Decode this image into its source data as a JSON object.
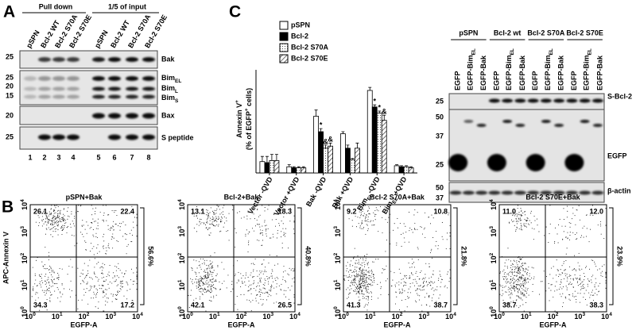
{
  "panel_a": {
    "label": "A",
    "headers": [
      "Pull down",
      "1/5 of input"
    ],
    "lanes": [
      "pSPN",
      "Bcl-2 WT",
      "Bcl-2 S70A",
      "Bcl-2 S70E",
      "pSPN",
      "Bcl-2 WT",
      "Bcl-2 S70A",
      "Bcl-2 S70E"
    ],
    "lane_numbers": [
      1,
      2,
      3,
      4,
      5,
      6,
      7,
      8
    ],
    "markers": [
      25,
      25,
      20,
      15,
      20,
      25
    ],
    "bands": [
      "Bak",
      [
        "Bim",
        "EL"
      ],
      [
        "Bim",
        "L"
      ],
      [
        "Bim",
        "S"
      ],
      "Bax",
      "S peptide"
    ]
  },
  "panel_c": {
    "label": "C",
    "blot": {
      "groups": [
        "pSPN",
        "Bcl-2 wt",
        "Bcl-2 S70A",
        "Bcl-2 S70E"
      ],
      "lanes": [
        "EGFP",
        [
          "EGFP-Bim",
          "EL"
        ],
        "EGFP-Bak"
      ],
      "markers": [
        25,
        50,
        37,
        25,
        50,
        37
      ],
      "bands": [
        "S-Bcl-2",
        "EGFP",
        "β-actin"
      ]
    }
  },
  "chart_data": {
    "type": "bar",
    "y_label": [
      "Annexin V",
      "+"
    ],
    "y_label2": [
      "(% of EGFP",
      "+",
      " cells)"
    ],
    "categories": [
      "Vector -QVD",
      "Vector +QVD",
      "Bak -QVD",
      "Bak +QVD",
      [
        "Bim",
        "EL",
        "-QVD"
      ],
      [
        "Bim",
        "EL",
        " +QVD"
      ]
    ],
    "ylim": [
      0,
      100
    ],
    "series": [
      {
        "name": "pSPN",
        "color": "#ffffff",
        "values": [
          11,
          6,
          55,
          38,
          80,
          7
        ],
        "errors": [
          5,
          2,
          6,
          2,
          3,
          1
        ]
      },
      {
        "name": "Bcl-2",
        "color": "#000000",
        "values": [
          10,
          5,
          40,
          24,
          64,
          6
        ],
        "errors": [
          6,
          1,
          3,
          3,
          2,
          1
        ]
      },
      {
        "name": "Bcl-2 S70A",
        "color": "#ffffff",
        "pattern": "dots",
        "values": [
          12,
          5,
          24,
          13,
          58,
          6
        ],
        "errors": [
          6,
          1,
          3,
          1,
          2,
          1
        ]
      },
      {
        "name": "Bcl-2 S70E",
        "color": "#ffffff",
        "pattern": "hatch",
        "values": [
          12,
          5,
          26,
          24,
          51,
          5
        ],
        "errors": [
          6,
          1,
          3,
          5,
          5,
          1
        ]
      }
    ],
    "annotations": [
      {
        "text": "*",
        "category": "Bak -QVD",
        "series": "Bcl-2"
      },
      {
        "text": "&",
        "category": "Bak -QVD",
        "series": "Bcl-2 S70A"
      },
      {
        "text": "&",
        "category": "Bak -QVD",
        "series": "Bcl-2 S70E"
      },
      {
        "text": "*",
        "category": [
          "Bim",
          "EL",
          "-QVD"
        ],
        "series": "Bcl-2"
      },
      {
        "text": "*",
        "category": [
          "Bim",
          "EL",
          "-QVD"
        ],
        "series": "Bcl-2 S70A"
      },
      {
        "text": "&",
        "category": [
          "Bim",
          "EL",
          "-QVD"
        ],
        "series": "Bcl-2 S70E"
      }
    ]
  },
  "panel_b": {
    "label": "B",
    "y_axis_label": "APC-Annexin V",
    "x_axis_label": "EGFP-A",
    "axis_ticks": [
      {
        "base": "10",
        "exp": "0"
      },
      {
        "base": "10",
        "exp": "1"
      },
      {
        "base": "10",
        "exp": "2"
      },
      {
        "base": "10",
        "exp": "3"
      },
      {
        "base": "10",
        "exp": "4"
      }
    ],
    "plots": [
      {
        "title": "pSPN+Bak",
        "upper_left": 26.1,
        "upper_right": 22.4,
        "lower_left": 34.3,
        "lower_right": 17.2,
        "upper_total": "56.6%"
      },
      {
        "title": "Bcl-2+Bak",
        "upper_left": 13.1,
        "upper_right": 18.3,
        "lower_left": 42.1,
        "lower_right": 26.5,
        "upper_total": "40.8%"
      },
      {
        "title": "Bcl-2 S70A+Bak",
        "upper_left": 9.2,
        "upper_right": 10.8,
        "lower_left": 41.3,
        "lower_right": 38.7,
        "upper_total": "21.8%"
      },
      {
        "title": "Bcl-2 S70E+Bak",
        "upper_left": "11.0",
        "upper_right": "12.0",
        "lower_left": 38.7,
        "lower_right": 38.3,
        "upper_total": "23.9%"
      }
    ]
  }
}
